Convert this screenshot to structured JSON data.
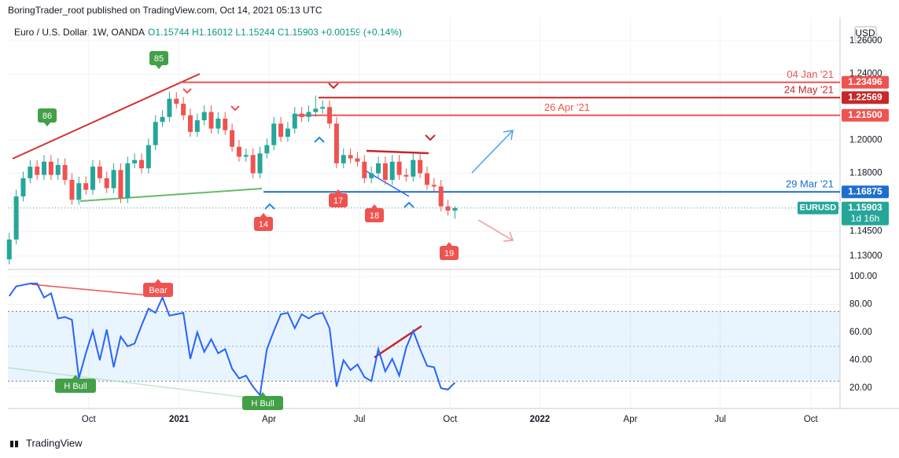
{
  "header": {
    "byline": "BoringTrader_root published on TradingView.com, Oct 14, 2021 05:13 UTC",
    "symbol": "Euro / U.S. Dollar, 1W, OANDA",
    "ohlc": "O1.15744 H1.16012 L1.15244 C1.15903 +0.00159 (+0.14%)",
    "currency": "USD",
    "footer": "TradingView"
  },
  "chart_data": [
    {
      "type": "candlestick",
      "up_color": "#26a69a",
      "down_color": "#ef5350",
      "ylim": [
        1.1219,
        1.2742
      ],
      "xlim": [
        -0.2,
        119.3
      ],
      "yticks": [
        {
          "value": 1.13,
          "label": "1.13000"
        },
        {
          "value": 1.145,
          "label": "1.14500"
        },
        {
          "value": 1.18,
          "label": "1.18000"
        },
        {
          "value": 1.2,
          "label": "1.20000"
        },
        {
          "value": 1.24,
          "label": "1.24000"
        },
        {
          "value": 1.26,
          "label": "1.26000"
        }
      ],
      "xticks": [
        {
          "value": 11.4,
          "label": "Oct"
        },
        {
          "value": 24.4,
          "label": "2021"
        },
        {
          "value": 37.3,
          "label": "Apr"
        },
        {
          "value": 50.3,
          "label": "Jul"
        },
        {
          "value": 63.3,
          "label": "Oct"
        },
        {
          "value": 76.2,
          "label": "2022"
        },
        {
          "value": 89.2,
          "label": "Apr"
        },
        {
          "value": 102.1,
          "label": "Jul"
        },
        {
          "value": 115.1,
          "label": "Oct"
        }
      ],
      "grid": true,
      "ohlc": [
        [
          1.128,
          1.144,
          1.125,
          1.14
        ],
        [
          1.14,
          1.17,
          1.137,
          1.166
        ],
        [
          1.166,
          1.181,
          1.163,
          1.177
        ],
        [
          1.177,
          1.188,
          1.174,
          1.184
        ],
        [
          1.184,
          1.188,
          1.176,
          1.179
        ],
        [
          1.179,
          1.191,
          1.176,
          1.187
        ],
        [
          1.187,
          1.191,
          1.176,
          1.179
        ],
        [
          1.179,
          1.189,
          1.176,
          1.185
        ],
        [
          1.185,
          1.189,
          1.173,
          1.176
        ],
        [
          1.176,
          1.18,
          1.161,
          1.164
        ],
        [
          1.164,
          1.178,
          1.161,
          1.174
        ],
        [
          1.174,
          1.178,
          1.167,
          1.17
        ],
        [
          1.17,
          1.188,
          1.167,
          1.184
        ],
        [
          1.184,
          1.188,
          1.174,
          1.177
        ],
        [
          1.177,
          1.181,
          1.168,
          1.171
        ],
        [
          1.171,
          1.186,
          1.168,
          1.182
        ],
        [
          1.182,
          1.186,
          1.162,
          1.165
        ],
        [
          1.165,
          1.19,
          1.162,
          1.186
        ],
        [
          1.186,
          1.192,
          1.183,
          1.188
        ],
        [
          1.188,
          1.192,
          1.18,
          1.183
        ],
        [
          1.183,
          1.201,
          1.18,
          1.197
        ],
        [
          1.197,
          1.215,
          1.194,
          1.211
        ],
        [
          1.211,
          1.218,
          1.208,
          1.214
        ],
        [
          1.214,
          1.229,
          1.211,
          1.225
        ],
        [
          1.225,
          1.229,
          1.219,
          1.222
        ],
        [
          1.222,
          1.226,
          1.212,
          1.215
        ],
        [
          1.215,
          1.219,
          1.202,
          1.205
        ],
        [
          1.205,
          1.216,
          1.202,
          1.212
        ],
        [
          1.212,
          1.221,
          1.209,
          1.217
        ],
        [
          1.217,
          1.221,
          1.204,
          1.207
        ],
        [
          1.207,
          1.217,
          1.204,
          1.213
        ],
        [
          1.213,
          1.217,
          1.203,
          1.206
        ],
        [
          1.206,
          1.21,
          1.193,
          1.196
        ],
        [
          1.196,
          1.2,
          1.187,
          1.19
        ],
        [
          1.19,
          1.195,
          1.187,
          1.191
        ],
        [
          1.191,
          1.195,
          1.177,
          1.18
        ],
        [
          1.18,
          1.196,
          1.177,
          1.192
        ],
        [
          1.192,
          1.201,
          1.189,
          1.197
        ],
        [
          1.197,
          1.214,
          1.194,
          1.21
        ],
        [
          1.21,
          1.214,
          1.199,
          1.202
        ],
        [
          1.202,
          1.211,
          1.199,
          1.207
        ],
        [
          1.207,
          1.22,
          1.204,
          1.216
        ],
        [
          1.216,
          1.22,
          1.211,
          1.214
        ],
        [
          1.214,
          1.221,
          1.211,
          1.217
        ],
        [
          1.217,
          1.227,
          1.214,
          1.219
        ],
        [
          1.219,
          1.224,
          1.216,
          1.22
        ],
        [
          1.22,
          1.224,
          1.207,
          1.21
        ],
        [
          1.21,
          1.214,
          1.183,
          1.186
        ],
        [
          1.186,
          1.195,
          1.183,
          1.191
        ],
        [
          1.191,
          1.195,
          1.186,
          1.189
        ],
        [
          1.189,
          1.193,
          1.184,
          1.187
        ],
        [
          1.187,
          1.191,
          1.174,
          1.177
        ],
        [
          1.177,
          1.184,
          1.174,
          1.18
        ],
        [
          1.18,
          1.19,
          1.177,
          1.186
        ],
        [
          1.186,
          1.19,
          1.173,
          1.176
        ],
        [
          1.176,
          1.191,
          1.173,
          1.187
        ],
        [
          1.187,
          1.191,
          1.176,
          1.179
        ],
        [
          1.179,
          1.183,
          1.175,
          1.178
        ],
        [
          1.178,
          1.192,
          1.175,
          1.188
        ],
        [
          1.188,
          1.192,
          1.177,
          1.18
        ],
        [
          1.18,
          1.184,
          1.17,
          1.173
        ],
        [
          1.173,
          1.177,
          1.169,
          1.172
        ],
        [
          1.172,
          1.176,
          1.157,
          1.16
        ],
        [
          1.16,
          1.164,
          1.1545,
          1.15744
        ],
        [
          1.15744,
          1.16012,
          1.15244,
          1.15903
        ]
      ],
      "levels": [
        {
          "name": "04 Jan '21",
          "price": {
            "value": 1.23496,
            "label": "1.23496"
          },
          "color": "#ef5350"
        },
        {
          "name": "24 May '21",
          "price": {
            "value": 1.22569,
            "label": "1.22569"
          },
          "color": "#c62828"
        },
        {
          "name": "26 Apr '21",
          "price": {
            "value": 1.215,
            "label": "1.21500"
          },
          "color": "#ef5350"
        },
        {
          "name": "29 Mar '21",
          "price": {
            "value": 1.16875,
            "label": "1.16875"
          },
          "color": "#1e6fcc"
        }
      ],
      "last": {
        "name": "EURUSD",
        "price": {
          "value": 1.15903,
          "label": "1.15903"
        },
        "countdown": "1d 16h",
        "color": "#26a69a"
      },
      "annotations": [
        {
          "text": "85"
        },
        {
          "text": "86"
        },
        {
          "text": "14"
        },
        {
          "text": "17"
        },
        {
          "text": "18"
        },
        {
          "text": "19"
        }
      ]
    },
    {
      "type": "line",
      "color": "#2962ff",
      "ylim": [
        5.4,
        105.1
      ],
      "yticks": [
        {
          "value": 20,
          "label": "20.00"
        },
        {
          "value": 40,
          "label": "40.00"
        },
        {
          "value": 60,
          "label": "60.00"
        },
        {
          "value": 80,
          "label": "80.00"
        },
        {
          "value": 100,
          "label": "100.00"
        }
      ],
      "band": [
        25,
        75
      ],
      "midline": 50,
      "values": [
        86,
        93,
        94,
        95,
        95,
        85,
        88,
        70,
        71,
        69,
        27,
        45,
        61,
        40,
        62,
        35,
        57,
        50,
        52,
        65,
        77,
        74,
        85,
        72,
        73,
        74,
        41,
        60,
        46,
        55,
        45,
        48,
        34,
        27,
        29,
        21,
        15,
        48,
        61,
        73,
        74,
        63,
        73,
        70,
        73,
        74,
        63,
        21,
        40,
        33,
        37,
        28,
        25,
        48,
        32,
        41,
        29,
        49,
        61,
        48,
        36,
        35,
        20,
        19,
        24
      ],
      "annotations": [
        {
          "text": "Bear"
        },
        {
          "text": "H Bull"
        },
        {
          "text": "H Bull"
        }
      ]
    }
  ]
}
